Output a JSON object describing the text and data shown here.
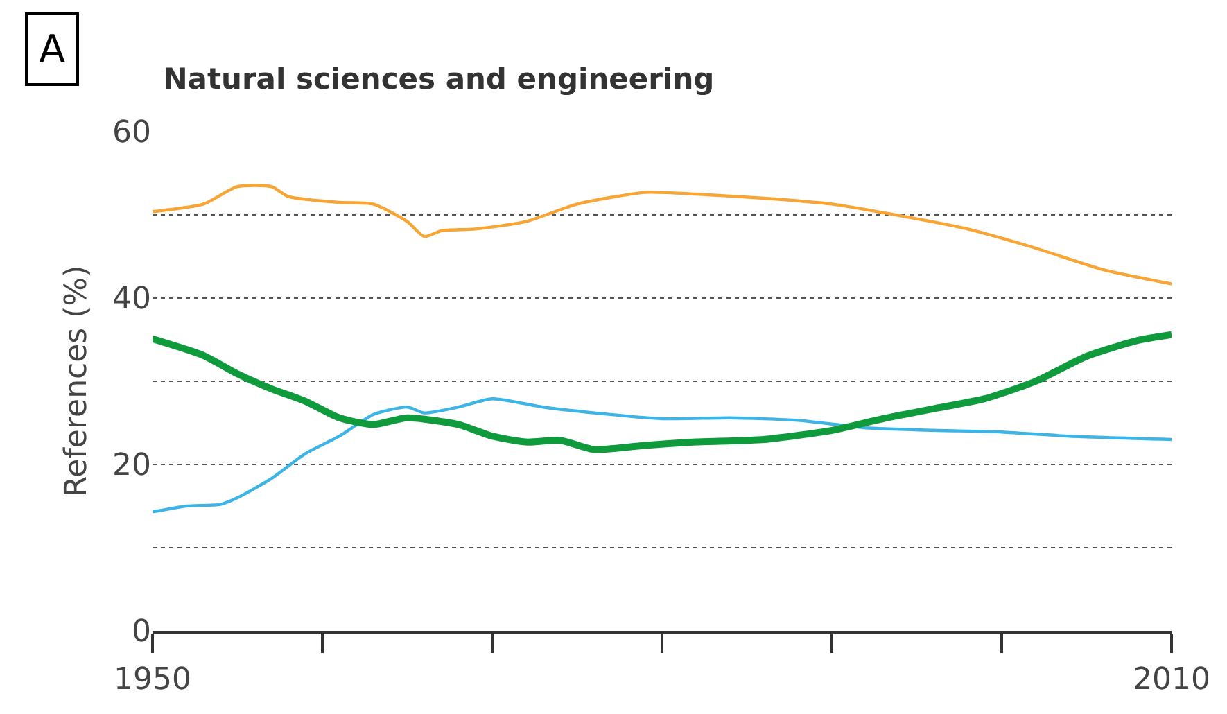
{
  "chart_data": {
    "type": "line",
    "title": "Natural sciences and engineering",
    "ylabel": "References (%)",
    "annotations": [
      "A"
    ],
    "xlim": [
      1950,
      2010
    ],
    "xticks": [
      1950,
      {
        "value": 1960,
        "label": null
      },
      {
        "value": 1970,
        "label": null
      },
      {
        "value": 1980,
        "label": null
      },
      {
        "value": 1990,
        "label": null
      },
      {
        "value": 2000,
        "label": null
      },
      2010
    ],
    "ylim": [
      0,
      60
    ],
    "yticks": [
      0,
      {
        "value": 10,
        "label": null
      },
      20,
      {
        "value": 30,
        "label": null
      },
      40,
      {
        "value": 50,
        "label": null
      },
      60
    ],
    "grid": "y",
    "line_style": "solid",
    "series": [
      {
        "color": "#f7a535",
        "x": [
          1950,
          1953,
          1955,
          1957,
          1958,
          1961,
          1963,
          1965,
          1966,
          1967,
          1969,
          1972,
          1975,
          1979,
          1982,
          1986,
          1990,
          1994,
          1998,
          2002,
          2006,
          2010
        ],
        "values": [
          50.4,
          51.3,
          53.4,
          53.4,
          52.2,
          51.5,
          51.3,
          49.2,
          47.4,
          48.1,
          48.3,
          49.2,
          51.3,
          52.7,
          52.5,
          52,
          51.3,
          49.9,
          48.3,
          46,
          43.4,
          41.7
        ]
      },
      {
        "color": "#3cb4e5",
        "x": [
          1950,
          1952,
          1954,
          1955,
          1957,
          1959,
          1961,
          1963,
          1965,
          1966,
          1968,
          1970,
          1973,
          1976,
          1980,
          1984,
          1988,
          1992,
          1996,
          2000,
          2004,
          2010
        ],
        "values": [
          14.3,
          15,
          15.2,
          16,
          18.3,
          21.3,
          23.4,
          26,
          26.9,
          26.2,
          26.9,
          27.9,
          26.9,
          26.2,
          25.5,
          25.6,
          25.3,
          24.4,
          24.1,
          23.9,
          23.4,
          23
        ]
      },
      {
        "color": "#0f9a3c",
        "x": [
          1950,
          1953,
          1955,
          1957,
          1959,
          1961,
          1963,
          1965,
          1968,
          1970,
          1972,
          1974,
          1976,
          1979,
          1982,
          1986,
          1990,
          1993,
          1996,
          1999,
          2002,
          2005,
          2008,
          2010
        ],
        "values": [
          35.1,
          33.1,
          30.9,
          29.1,
          27.6,
          25.6,
          24.8,
          25.6,
          24.8,
          23.4,
          22.7,
          22.9,
          21.8,
          22.3,
          22.7,
          23,
          24.1,
          25.5,
          26.7,
          27.9,
          30,
          33,
          34.9,
          35.6
        ]
      }
    ]
  }
}
